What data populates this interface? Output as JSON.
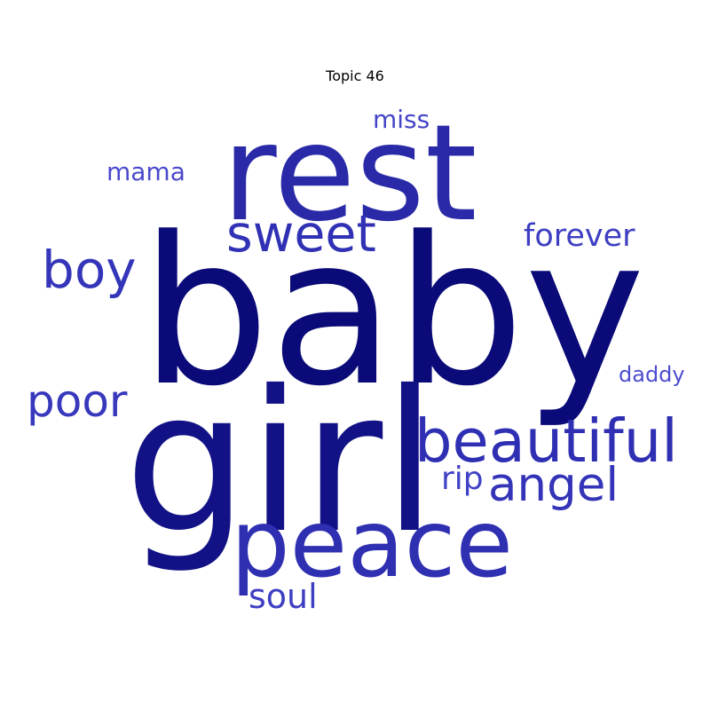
{
  "title": "Topic 46",
  "words": [
    {
      "key": "baby",
      "text": "baby",
      "color": "#0a0a78"
    },
    {
      "key": "girl",
      "text": "girl",
      "color": "#121286"
    },
    {
      "key": "rest",
      "text": "rest",
      "color": "#2a2aa8"
    },
    {
      "key": "peace",
      "text": "peace",
      "color": "#2f2fb2"
    },
    {
      "key": "beautiful",
      "text": "beautiful",
      "color": "#2f2fb4"
    },
    {
      "key": "sweet",
      "text": "sweet",
      "color": "#3131b5"
    },
    {
      "key": "angel",
      "text": "angel",
      "color": "#3434b8"
    },
    {
      "key": "boy",
      "text": "boy",
      "color": "#3535ba"
    },
    {
      "key": "poor",
      "text": "poor",
      "color": "#3838bd"
    },
    {
      "key": "forever",
      "text": "forever",
      "color": "#3e3ec2"
    },
    {
      "key": "soul",
      "text": "soul",
      "color": "#3e3ec2"
    },
    {
      "key": "miss",
      "text": "miss",
      "color": "#4444c8"
    },
    {
      "key": "mama",
      "text": "mama",
      "color": "#4a4acc"
    },
    {
      "key": "rip",
      "text": "rip",
      "color": "#4141c6"
    },
    {
      "key": "daddy",
      "text": "daddy",
      "color": "#4d4dcf"
    }
  ]
}
